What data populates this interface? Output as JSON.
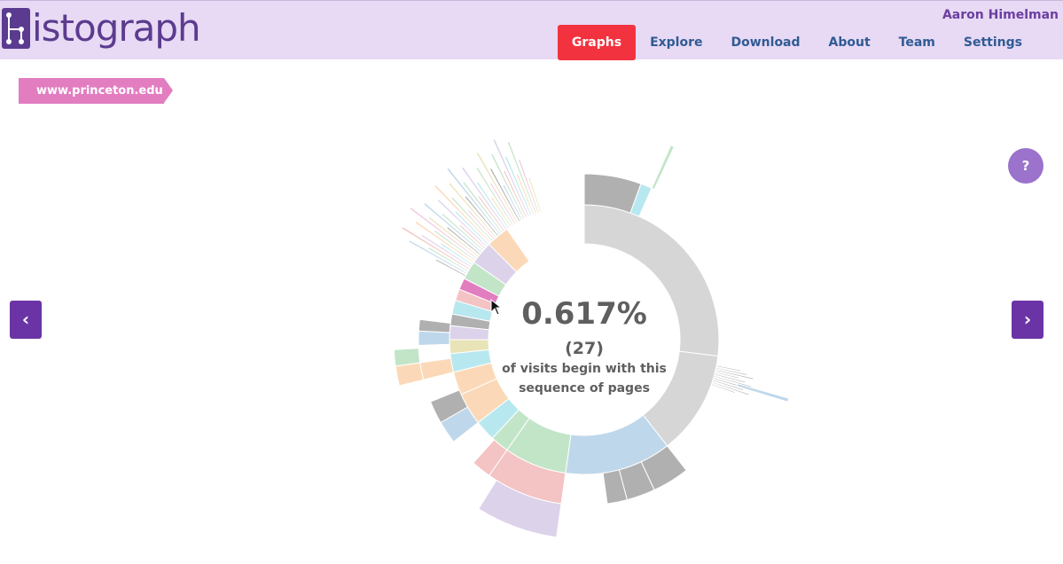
{
  "header": {
    "logo_text": "istograph",
    "user_name": "Aaron Himelman",
    "nav": [
      "Graphs",
      "Explore",
      "Download",
      "About",
      "Team",
      "Settings"
    ],
    "active_nav": "Graphs"
  },
  "breadcrumb": "www.princeton.edu",
  "help_label": "?",
  "arrows": {
    "prev": "‹",
    "next": "›"
  },
  "sunburst": {
    "percentage": "0.617%",
    "count": "(27)",
    "description_line1": "of visits begin with this",
    "description_line2": "sequence of pages"
  },
  "colors": {
    "header_bg": "#e8d9f4",
    "brand": "#5b3b8f",
    "active_nav": "#f2333f",
    "nav_text": "#2f5b94",
    "crumb": "#e27dc0",
    "help": "#9b72cc",
    "arrow": "#6b34a6",
    "palette": [
      "#d6d6d6",
      "#b0b0b0",
      "#bfd7ea",
      "#c2e5c8",
      "#f4c3c3",
      "#dcd2ea",
      "#b8e8ef",
      "#fbd9b8",
      "#c8e6c9",
      "#f3c9e0",
      "#e9e4b8"
    ]
  }
}
